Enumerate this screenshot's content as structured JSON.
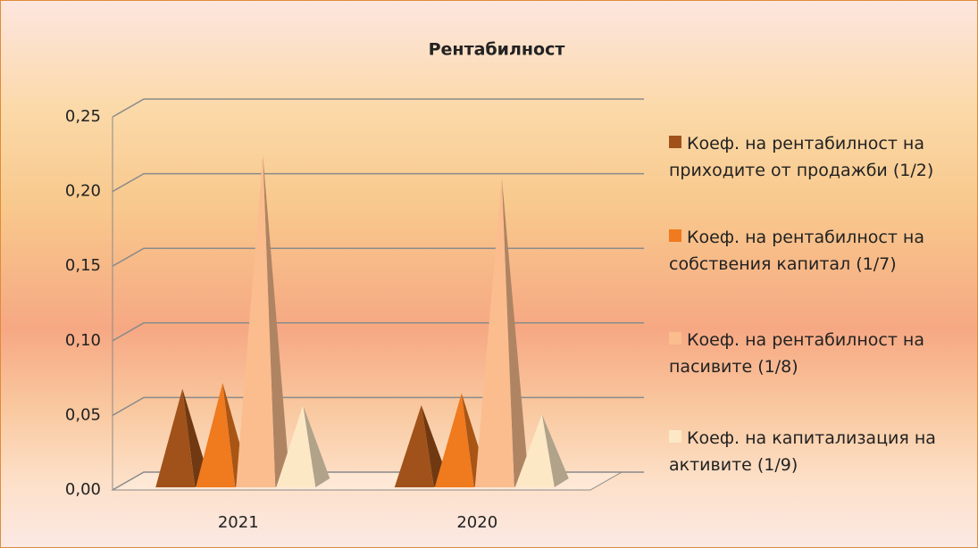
{
  "chart_data": {
    "type": "pyramid_bar",
    "title": "Рентабилност",
    "categories": [
      "2021",
      "2020"
    ],
    "series": [
      {
        "name": "Коеф. на рентабилност на приходите от продажби (1/2)",
        "color": "#a0521a",
        "values": [
          0.063,
          0.052
        ]
      },
      {
        "name": "Коеф. на рентабилност на собствения капитал (1/7)",
        "color": "#f07a1e",
        "values": [
          0.067,
          0.06
        ]
      },
      {
        "name": "Коеф. на рентабилност на пасивите (1/8)",
        "color": "#fbbd8e",
        "values": [
          0.22,
          0.205
        ]
      },
      {
        "name": "Коеф. на капитализация на активите (1/9)",
        "color": "#fde8c6",
        "values": [
          0.052,
          0.046
        ]
      }
    ],
    "ylim": [
      0,
      0.25
    ],
    "yticks": [
      {
        "value": 0,
        "label": "0,00"
      },
      {
        "value": 0.05,
        "label": "0,05"
      },
      {
        "value": 0.1,
        "label": "0,10"
      },
      {
        "value": 0.15,
        "label": "0,15"
      },
      {
        "value": 0.2,
        "label": "0,20"
      },
      {
        "value": 0.25,
        "label": "0,25"
      }
    ],
    "grid": true,
    "legend": "right"
  }
}
